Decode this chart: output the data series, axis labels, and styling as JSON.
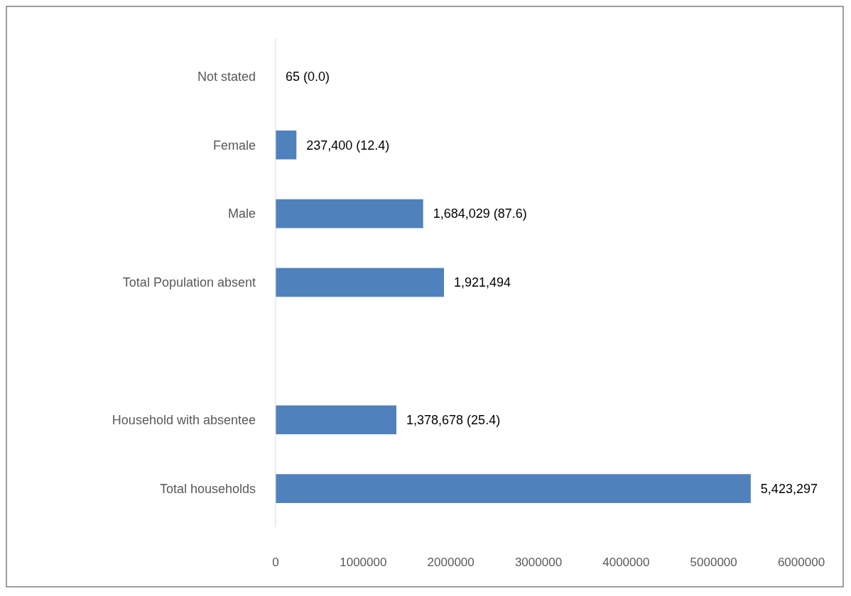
{
  "chart_data": {
    "type": "bar",
    "orientation": "horizontal",
    "categories": [
      "Not stated",
      "Female",
      "Male",
      "Total Population absent",
      null,
      "Household with absentee",
      "Total households"
    ],
    "values": [
      65,
      237400,
      1684029,
      1921494,
      null,
      1378678,
      5423297
    ],
    "value_labels": [
      "65 (0.0)",
      "237,400 (12.4)",
      "1,684,029 (87.6)",
      "1,921,494",
      null,
      "1,378,678 (25.4)",
      "5,423,297"
    ],
    "color": "#4f81bd",
    "xlim": [
      0,
      6000000
    ],
    "xticks": [
      0,
      1000000,
      2000000,
      3000000,
      4000000,
      5000000,
      6000000
    ],
    "grid": false
  }
}
